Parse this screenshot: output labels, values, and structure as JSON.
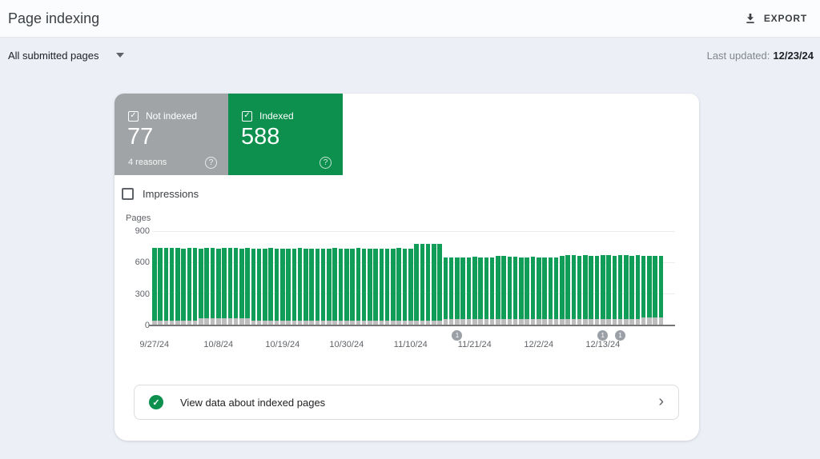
{
  "header": {
    "title": "Page indexing",
    "export_label": "EXPORT"
  },
  "filter_bar": {
    "dropdown_label": "All submitted pages",
    "last_updated_label": "Last updated:",
    "last_updated_date": "12/23/24"
  },
  "tabs": {
    "not_indexed": {
      "label": "Not indexed",
      "value": "77",
      "sub": "4 reasons",
      "checked": true,
      "color": "#a1a4a6"
    },
    "indexed": {
      "label": "Indexed",
      "value": "588",
      "checked": true,
      "color": "#0d904d"
    }
  },
  "impressions": {
    "label": "Impressions",
    "checked": false
  },
  "icons": {
    "export": "download-icon",
    "dropdown": "chevron-down-icon",
    "tab_checkbox": "checked-checkbox-icon",
    "tab_help": "help-circle-icon",
    "cta_status": "check-circle-icon",
    "cta_arrow": "chevron-right-icon"
  },
  "cta": {
    "label": "View data about indexed pages"
  },
  "colors": {
    "indexed_green": "#0f9d58",
    "card_green": "#0d904d",
    "not_indexed_gray": "#bdbdbd",
    "tab_gray": "#a1a4a6",
    "background": "#edeff7",
    "badge_gray": "#9aa0a6"
  },
  "chart_data": {
    "type": "bar",
    "stacked": true,
    "title": "",
    "xlabel": "",
    "ylabel": "Pages",
    "ylim": [
      0,
      900
    ],
    "y_ticks": [
      0,
      300,
      600,
      900
    ],
    "grid": true,
    "x_tick_labels": [
      "9/27/24",
      "10/8/24",
      "10/19/24",
      "10/30/24",
      "11/10/24",
      "11/21/24",
      "12/2/24",
      "12/13/24"
    ],
    "x_tick_day_indices": [
      0,
      11,
      22,
      33,
      44,
      55,
      66,
      77
    ],
    "series": [
      {
        "name": "Not indexed",
        "color": "#bdbdbd",
        "values": [
          48,
          47,
          49,
          48,
          48,
          47,
          48,
          49,
          66,
          68,
          69,
          67,
          68,
          70,
          68,
          67,
          68,
          48,
          47,
          48,
          49,
          48,
          47,
          48,
          48,
          49,
          48,
          47,
          48,
          48,
          47,
          49,
          48,
          48,
          47,
          48,
          49,
          48,
          48,
          47,
          48,
          48,
          49,
          47,
          48,
          48,
          47,
          48,
          48,
          47,
          60,
          61,
          59,
          60,
          60,
          61,
          60,
          59,
          60,
          60,
          61,
          60,
          59,
          60,
          59,
          61,
          60,
          60,
          61,
          60,
          62,
          61,
          63,
          62,
          62,
          61,
          62,
          63,
          62,
          61,
          62,
          62,
          63,
          62,
          77,
          77,
          77,
          77
        ]
      },
      {
        "name": "Indexed",
        "color": "#0f9d58",
        "values": [
          690,
          692,
          688,
          691,
          690,
          689,
          692,
          690,
          668,
          670,
          671,
          669,
          670,
          672,
          670,
          669,
          671,
          686,
          688,
          687,
          689,
          686,
          687,
          688,
          686,
          689,
          687,
          688,
          686,
          687,
          689,
          688,
          686,
          687,
          688,
          689,
          686,
          688,
          687,
          686,
          688,
          687,
          689,
          688,
          687,
          730,
          731,
          729,
          732,
          730,
          590,
          588,
          591,
          589,
          590,
          592,
          589,
          590,
          588,
          600,
          601,
          599,
          600,
          592,
          590,
          593,
          591,
          592,
          590,
          592,
          605,
          607,
          606,
          604,
          607,
          606,
          605,
          608,
          606,
          605,
          607,
          606,
          604,
          606,
          590,
          589,
          588,
          588
        ]
      }
    ],
    "annotations": [
      {
        "day_index": 52,
        "label": "1"
      },
      {
        "day_index": 77,
        "label": "1"
      },
      {
        "day_index": 80,
        "label": "1"
      }
    ]
  }
}
